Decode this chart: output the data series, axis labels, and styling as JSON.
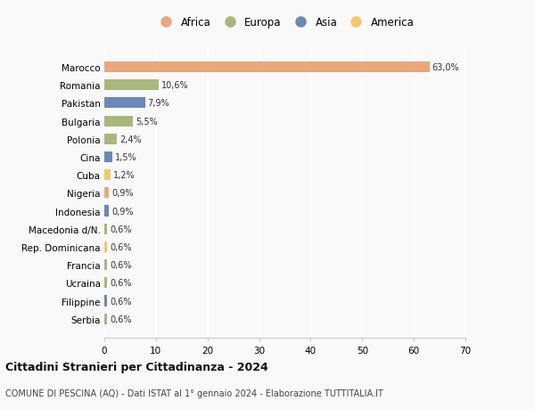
{
  "categories": [
    "Serbia",
    "Filippine",
    "Ucraina",
    "Francia",
    "Rep. Dominicana",
    "Macedonia d/N.",
    "Indonesia",
    "Nigeria",
    "Cuba",
    "Cina",
    "Polonia",
    "Bulgaria",
    "Pakistan",
    "Romania",
    "Marocco"
  ],
  "values": [
    0.6,
    0.6,
    0.6,
    0.6,
    0.6,
    0.6,
    0.9,
    0.9,
    1.2,
    1.5,
    2.4,
    5.5,
    7.9,
    10.6,
    63.0
  ],
  "labels": [
    "0,6%",
    "0,6%",
    "0,6%",
    "0,6%",
    "0,6%",
    "0,6%",
    "0,9%",
    "0,9%",
    "1,2%",
    "1,5%",
    "2,4%",
    "5,5%",
    "7,9%",
    "10,6%",
    "63,0%"
  ],
  "colors": [
    "#a8b87c",
    "#6b88b8",
    "#a8b87c",
    "#a8b87c",
    "#f0c96b",
    "#a8b87c",
    "#6b88b8",
    "#e8a87c",
    "#f0c96b",
    "#6b88b8",
    "#a8b87c",
    "#a8b87c",
    "#6b88b8",
    "#a8b87c",
    "#e8a87c"
  ],
  "legend": [
    {
      "label": "Africa",
      "color": "#e8a87c"
    },
    {
      "label": "Europa",
      "color": "#a8b87c"
    },
    {
      "label": "Asia",
      "color": "#6b88b8"
    },
    {
      "label": "America",
      "color": "#f0c96b"
    }
  ],
  "xlim": [
    0,
    70
  ],
  "xticks": [
    0,
    10,
    20,
    30,
    40,
    50,
    60,
    70
  ],
  "title": "Cittadini Stranieri per Cittadinanza - 2024",
  "subtitle": "COMUNE DI PESCINA (AQ) - Dati ISTAT al 1° gennaio 2024 - Elaborazione TUTTITALIA.IT",
  "bg_color": "#f9f9f9",
  "bar_height": 0.6
}
